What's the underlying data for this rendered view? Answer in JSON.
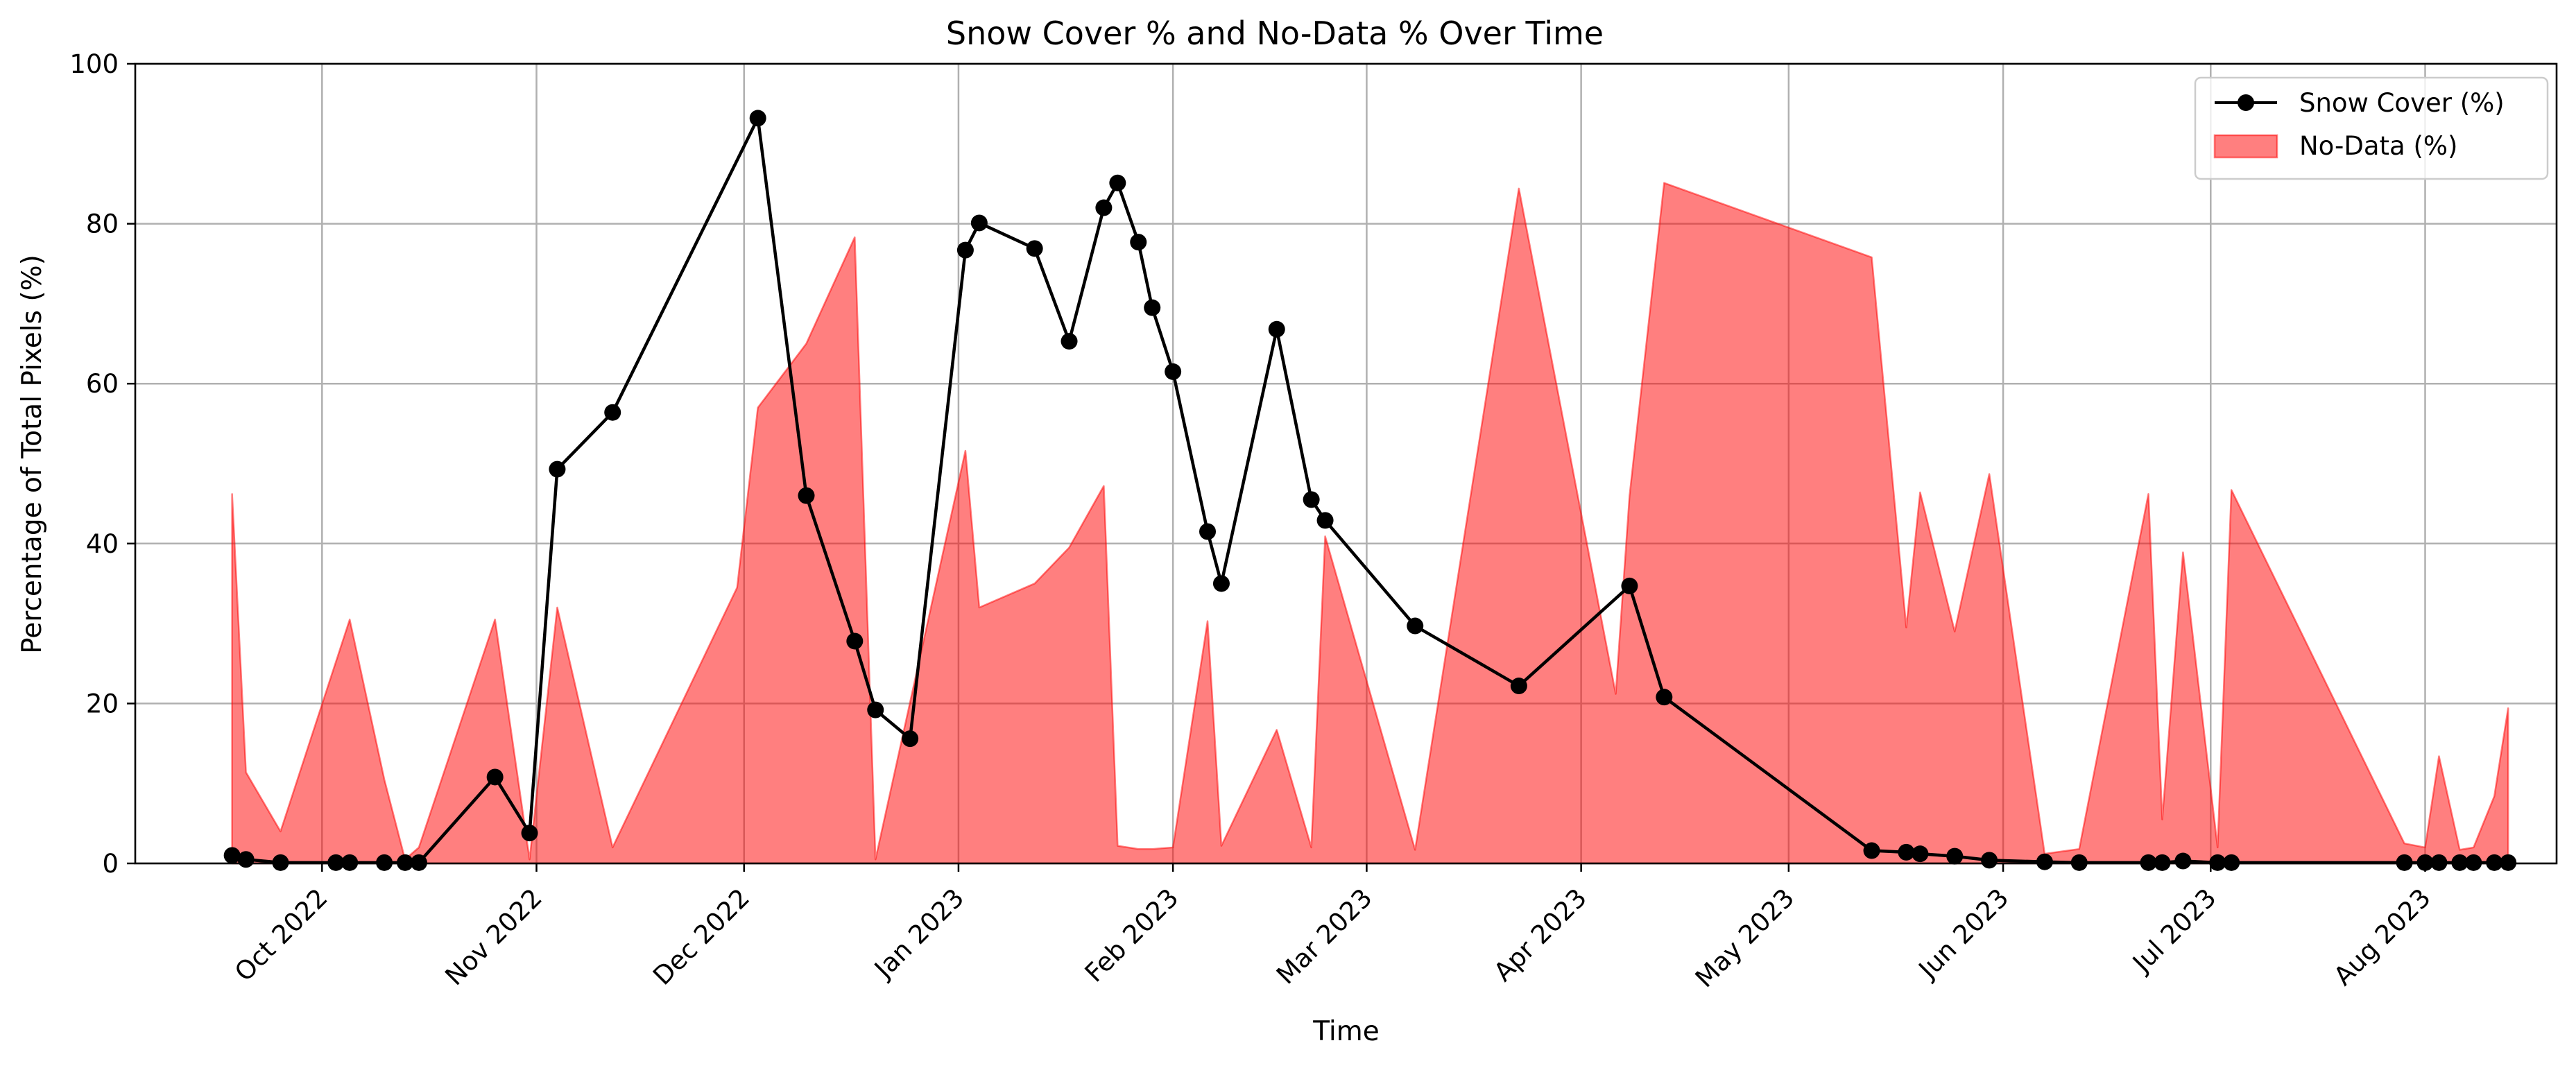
{
  "chart_data": {
    "type": "line",
    "title": "Snow Cover % and No-Data % Over Time",
    "xlabel": "Time",
    "ylabel": "Percentage of Total Pixels (%)",
    "ylim": [
      0,
      100
    ],
    "xlim": [
      "2022-09-04",
      "2023-08-20"
    ],
    "grid": true,
    "legend_position": "top-right",
    "y_ticks": [
      0,
      20,
      40,
      60,
      80,
      100
    ],
    "x_ticks": [
      {
        "date": "2022-10-01",
        "label": "Oct 2022"
      },
      {
        "date": "2022-11-01",
        "label": "Nov 2022"
      },
      {
        "date": "2022-12-01",
        "label": "Dec 2022"
      },
      {
        "date": "2023-01-01",
        "label": "Jan 2023"
      },
      {
        "date": "2023-02-01",
        "label": "Feb 2023"
      },
      {
        "date": "2023-03-01",
        "label": "Mar 2023"
      },
      {
        "date": "2023-04-01",
        "label": "Apr 2023"
      },
      {
        "date": "2023-05-01",
        "label": "May 2023"
      },
      {
        "date": "2023-06-01",
        "label": "Jun 2023"
      },
      {
        "date": "2023-07-01",
        "label": "Jul 2023"
      },
      {
        "date": "2023-08-01",
        "label": "Aug 2023"
      }
    ],
    "series": [
      {
        "name": "Snow Cover (%)",
        "kind": "line-markers",
        "color": "#000000",
        "points": [
          [
            "2022-09-18",
            1.0
          ],
          [
            "2022-09-20",
            0.5
          ],
          [
            "2022-09-25",
            0.1
          ],
          [
            "2022-10-03",
            0.1
          ],
          [
            "2022-10-05",
            0.1
          ],
          [
            "2022-10-10",
            0.1
          ],
          [
            "2022-10-13",
            0.1
          ],
          [
            "2022-10-15",
            0.1
          ],
          [
            "2022-10-26",
            10.8
          ],
          [
            "2022-10-31",
            3.8
          ],
          [
            "2022-11-04",
            49.3
          ],
          [
            "2022-11-12",
            56.4
          ],
          [
            "2022-12-03",
            93.2
          ],
          [
            "2022-12-10",
            46.0
          ],
          [
            "2022-12-17",
            27.8
          ],
          [
            "2022-12-20",
            19.2
          ],
          [
            "2022-12-25",
            15.6
          ],
          [
            "2023-01-02",
            76.7
          ],
          [
            "2023-01-04",
            80.1
          ],
          [
            "2023-01-12",
            76.9
          ],
          [
            "2023-01-17",
            65.3
          ],
          [
            "2023-01-22",
            82.0
          ],
          [
            "2023-01-24",
            85.1
          ],
          [
            "2023-01-27",
            77.7
          ],
          [
            "2023-01-29",
            69.5
          ],
          [
            "2023-02-01",
            61.5
          ],
          [
            "2023-02-06",
            41.5
          ],
          [
            "2023-02-08",
            35.0
          ],
          [
            "2023-02-16",
            66.8
          ],
          [
            "2023-02-21",
            45.5
          ],
          [
            "2023-02-23",
            42.9
          ],
          [
            "2023-03-08",
            29.7
          ],
          [
            "2023-03-23",
            22.2
          ],
          [
            "2023-04-08",
            34.7
          ],
          [
            "2023-04-13",
            20.8
          ],
          [
            "2023-05-13",
            1.6
          ],
          [
            "2023-05-18",
            1.4
          ],
          [
            "2023-05-20",
            1.2
          ],
          [
            "2023-05-25",
            0.9
          ],
          [
            "2023-05-30",
            0.4
          ],
          [
            "2023-06-07",
            0.2
          ],
          [
            "2023-06-12",
            0.1
          ],
          [
            "2023-06-22",
            0.1
          ],
          [
            "2023-06-24",
            0.1
          ],
          [
            "2023-06-27",
            0.3
          ],
          [
            "2023-07-02",
            0.1
          ],
          [
            "2023-07-04",
            0.1
          ],
          [
            "2023-07-29",
            0.1
          ],
          [
            "2023-08-01",
            0.1
          ],
          [
            "2023-08-03",
            0.1
          ],
          [
            "2023-08-06",
            0.1
          ],
          [
            "2023-08-08",
            0.1
          ],
          [
            "2023-08-11",
            0.1
          ],
          [
            "2023-08-13",
            0.1
          ]
        ]
      },
      {
        "name": "No-Data (%)",
        "kind": "area",
        "color": "#ff0000",
        "fill_opacity": 0.5,
        "points": [
          [
            "2022-09-18",
            46.2
          ],
          [
            "2022-09-20",
            11.4
          ],
          [
            "2022-09-25",
            4.0
          ],
          [
            "2022-10-05",
            30.5
          ],
          [
            "2022-10-10",
            10.5
          ],
          [
            "2022-10-13",
            0.5
          ],
          [
            "2022-10-15",
            2.0
          ],
          [
            "2022-10-26",
            30.5
          ],
          [
            "2022-10-31",
            0.5
          ],
          [
            "2022-11-04",
            32.0
          ],
          [
            "2022-11-12",
            2.0
          ],
          [
            "2022-11-30",
            34.5
          ],
          [
            "2022-12-03",
            57.0
          ],
          [
            "2022-12-10",
            65.0
          ],
          [
            "2022-12-17",
            78.3
          ],
          [
            "2022-12-20",
            0.5
          ],
          [
            "2023-01-02",
            51.6
          ],
          [
            "2023-01-04",
            32.0
          ],
          [
            "2023-01-12",
            35.0
          ],
          [
            "2023-01-17",
            39.5
          ],
          [
            "2023-01-22",
            47.2
          ],
          [
            "2023-01-24",
            2.2
          ],
          [
            "2023-01-27",
            1.8
          ],
          [
            "2023-01-29",
            1.8
          ],
          [
            "2023-02-01",
            2.0
          ],
          [
            "2023-02-06",
            30.3
          ],
          [
            "2023-02-08",
            2.2
          ],
          [
            "2023-02-16",
            16.7
          ],
          [
            "2023-02-21",
            2.0
          ],
          [
            "2023-02-23",
            40.9
          ],
          [
            "2023-03-08",
            1.7
          ],
          [
            "2023-03-23",
            84.4
          ],
          [
            "2023-04-06",
            21.2
          ],
          [
            "2023-04-08",
            46.0
          ],
          [
            "2023-04-13",
            85.1
          ],
          [
            "2023-05-13",
            75.8
          ],
          [
            "2023-05-18",
            29.5
          ],
          [
            "2023-05-20",
            46.4
          ],
          [
            "2023-05-25",
            29.0
          ],
          [
            "2023-05-30",
            48.7
          ],
          [
            "2023-06-07",
            1.2
          ],
          [
            "2023-06-12",
            1.8
          ],
          [
            "2023-06-22",
            46.2
          ],
          [
            "2023-06-24",
            5.5
          ],
          [
            "2023-06-27",
            38.9
          ],
          [
            "2023-07-02",
            2.0
          ],
          [
            "2023-07-04",
            46.7
          ],
          [
            "2023-07-29",
            2.5
          ],
          [
            "2023-08-01",
            2.0
          ],
          [
            "2023-08-03",
            13.4
          ],
          [
            "2023-08-06",
            1.7
          ],
          [
            "2023-08-08",
            2.0
          ],
          [
            "2023-08-11",
            8.4
          ],
          [
            "2023-08-13",
            19.4
          ]
        ]
      }
    ]
  }
}
